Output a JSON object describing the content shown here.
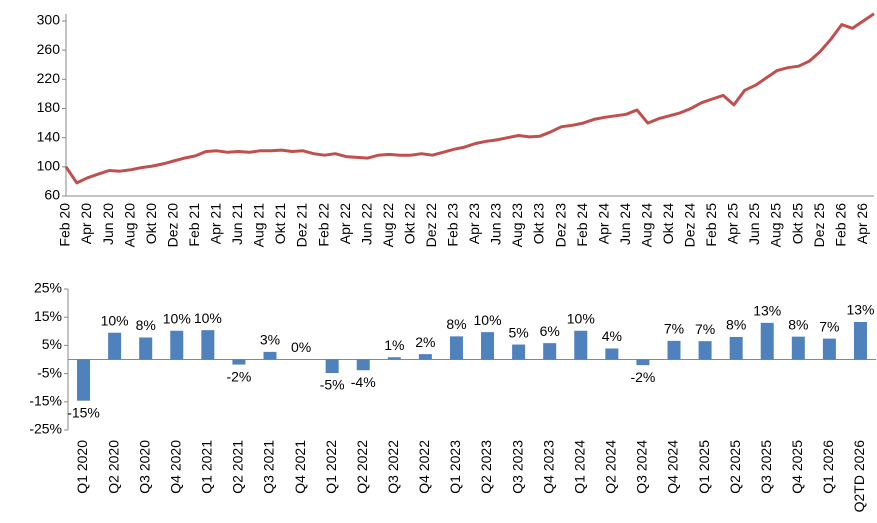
{
  "chart_data": [
    {
      "type": "line",
      "color": "#c0504d",
      "categories": [
        "Feb 20",
        null,
        "Apr 20",
        null,
        "Jun 20",
        null,
        "Aug 20",
        null,
        "Okt 20",
        null,
        "Dez 20",
        null,
        "Feb 21",
        null,
        "Apr 21",
        null,
        "Jun 21",
        null,
        "Aug 21",
        null,
        "Okt 21",
        null,
        "Dez 21",
        null,
        "Feb 22",
        null,
        "Apr 22",
        null,
        "Jun 22",
        null,
        "Aug 22",
        null,
        "Okt 22",
        null,
        "Dez 22",
        null,
        "Feb 23",
        null,
        "Apr 23",
        null,
        "Jun 23",
        null,
        "Aug 23",
        null,
        "Okt 23",
        null,
        "Dez 23",
        null,
        "Feb 24",
        null,
        "Apr 24",
        null,
        "Jun 24",
        null,
        "Aug 24",
        null,
        "Okt 24",
        null,
        "Dez 24",
        null,
        "Feb 25",
        null,
        "Apr 25",
        null,
        "Jun 25",
        null,
        "Aug 25",
        null,
        "Okt 25",
        null,
        "Dez 25",
        null,
        "Feb 26",
        null,
        "Apr 26",
        null
      ],
      "values": [
        100,
        78,
        85,
        90,
        95,
        94,
        96,
        99,
        101,
        104,
        108,
        112,
        115,
        121,
        122,
        120,
        121,
        120,
        122,
        122,
        123,
        121,
        122,
        118,
        116,
        118,
        114,
        113,
        112,
        116,
        117,
        116,
        116,
        118,
        116,
        120,
        124,
        127,
        132,
        135,
        137,
        140,
        143,
        141,
        142,
        148,
        155,
        157,
        160,
        165,
        168,
        170,
        172,
        178,
        160,
        166,
        170,
        174,
        180,
        188,
        193,
        198,
        185,
        205,
        212,
        222,
        232,
        236,
        238,
        245,
        258,
        275,
        295,
        290,
        300,
        310
      ],
      "ylim": [
        60,
        310
      ],
      "yticks": [
        60,
        100,
        140,
        180,
        220,
        260,
        300
      ]
    },
    {
      "type": "bar",
      "color": "#4f81bd",
      "categories": [
        "Q1 2020",
        "Q2 2020",
        "Q3 2020",
        "Q4 2020",
        "Q1 2021",
        "Q2 2021",
        "Q3 2021",
        "Q4 2021",
        "Q1 2022",
        "Q2 2022",
        "Q3 2022",
        "Q4 2022",
        "Q1 2023",
        "Q2 2023",
        "Q3 2023",
        "Q4 2023",
        "Q1 2024",
        "Q2 2024",
        "Q3 2024",
        "Q4 2024",
        "Q1 2025",
        "Q2 2025",
        "Q3 2025",
        "Q4 2025",
        "Q1 2026",
        "Q2TD 2026"
      ],
      "values": [
        -14.6,
        9.5,
        7.8,
        10.2,
        10.4,
        -1.8,
        2.7,
        0.1,
        -4.8,
        -3.8,
        0.8,
        1.9,
        8.2,
        9.7,
        5.3,
        5.8,
        10.2,
        3.9,
        -2.0,
        6.6,
        6.5,
        8.0,
        13.0,
        8.1,
        7.4,
        13.3
      ],
      "value_labels": [
        "-15%",
        "10%",
        "8%",
        "10%",
        "10%",
        "-2%",
        "3%",
        "0%",
        "-5%",
        "-4%",
        "1%",
        "2%",
        "8%",
        "10%",
        "5%",
        "6%",
        "10%",
        "4%",
        "-2%",
        "7%",
        "7%",
        "8%",
        "13%",
        "8%",
        "7%",
        "13%"
      ],
      "ylim": [
        -25,
        25
      ],
      "yticks": [
        {
          "value": -25,
          "label": "-25%"
        },
        {
          "value": -15,
          "label": "-15%"
        },
        {
          "value": -5,
          "label": "-5%"
        },
        {
          "value": 5,
          "label": "5%"
        },
        {
          "value": 15,
          "label": "15%"
        },
        {
          "value": 25,
          "label": "25%"
        }
      ]
    }
  ]
}
